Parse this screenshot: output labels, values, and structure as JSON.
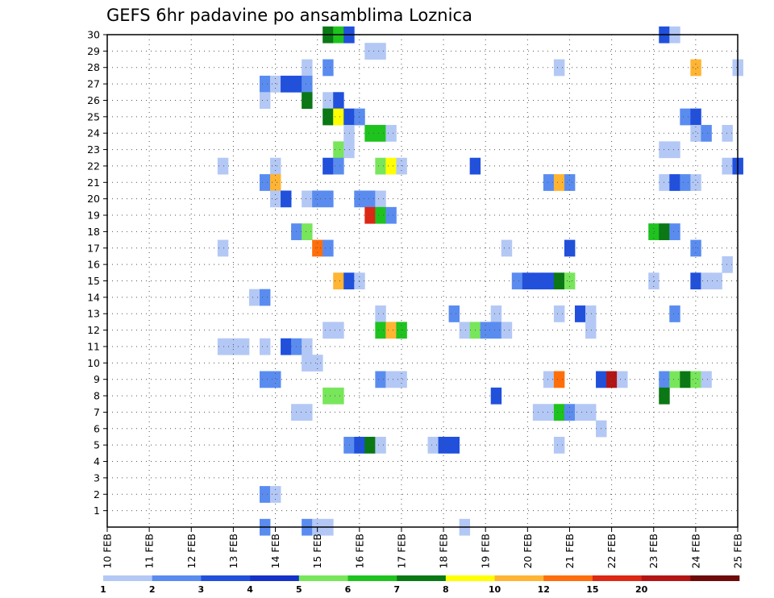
{
  "chart_data": {
    "type": "heatmap",
    "title": "GEFS 6hr padavine po ansamblima Loznica",
    "x_tick_labels": [
      "10 FEB",
      "11 FEB",
      "12 FEB",
      "13 FEB",
      "14 FEB",
      "15 FEB",
      "16 FEB",
      "17 FEB",
      "18 FEB",
      "19 FEB",
      "20 FEB",
      "21 FEB",
      "22 FEB",
      "23 FEB",
      "24 FEB",
      "25 FEB"
    ],
    "y_tick_labels": [
      "1",
      "2",
      "3",
      "4",
      "5",
      "6",
      "7",
      "8",
      "9",
      "10",
      "11",
      "12",
      "13",
      "14",
      "15",
      "16",
      "17",
      "18",
      "19",
      "20",
      "21",
      "22",
      "23",
      "24",
      "25",
      "26",
      "27",
      "28",
      "29",
      "30"
    ],
    "x_range_days": [
      10,
      25
    ],
    "y_range": [
      0,
      30
    ],
    "grid": true,
    "legend_position": "bottom",
    "legend_levels": [
      "1",
      "2",
      "3",
      "4",
      "5",
      "6",
      "7",
      "8",
      "10",
      "12",
      "15",
      "20"
    ],
    "legend_colors": [
      "#b4c8f5",
      "#5a8cf0",
      "#2050dc",
      "#1432c8",
      "#78e65a",
      "#1ec31e",
      "#0a7814",
      "#ffff00",
      "#ffb432",
      "#ff6e0a",
      "#dc2814",
      "#b41414",
      "#6e0a0a"
    ],
    "cell_colors": {
      "lb": "#b4c8f5",
      "mb": "#5a8cf0",
      "db": "#2050dc",
      "lg": "#78e65a",
      "mg": "#1ec31e",
      "dg": "#0a7814",
      "ye": "#ffff00",
      "yo": "#ffb432",
      "or": "#ff6e0a",
      "rd": "#dc2814",
      "dr": "#b41414"
    },
    "cells": [
      [
        15.25,
        30,
        "dg"
      ],
      [
        15.5,
        30,
        "mg"
      ],
      [
        15.75,
        30,
        "db"
      ],
      [
        23.25,
        30,
        "db"
      ],
      [
        23.5,
        30,
        "lb"
      ],
      [
        16.25,
        29,
        "lb"
      ],
      [
        16.5,
        29,
        "lb"
      ],
      [
        14.75,
        28,
        "lb"
      ],
      [
        15.25,
        28,
        "mb"
      ],
      [
        20.75,
        28,
        "lb"
      ],
      [
        24.0,
        28,
        "yo"
      ],
      [
        25.0,
        28,
        "lb"
      ],
      [
        13.75,
        27,
        "mb"
      ],
      [
        14.0,
        27,
        "lb"
      ],
      [
        14.25,
        27,
        "db"
      ],
      [
        14.5,
        27,
        "db"
      ],
      [
        14.75,
        27,
        "mb"
      ],
      [
        13.75,
        26,
        "lb"
      ],
      [
        14.75,
        26,
        "dg"
      ],
      [
        15.25,
        26,
        "lb"
      ],
      [
        15.5,
        26,
        "db"
      ],
      [
        15.25,
        25,
        "dg"
      ],
      [
        15.5,
        25,
        "ye"
      ],
      [
        15.75,
        25,
        "db"
      ],
      [
        16.0,
        25,
        "mb"
      ],
      [
        23.75,
        25,
        "mb"
      ],
      [
        24.0,
        25,
        "db"
      ],
      [
        15.75,
        24,
        "lb"
      ],
      [
        16.25,
        24,
        "mg"
      ],
      [
        16.5,
        24,
        "mg"
      ],
      [
        16.75,
        24,
        "lb"
      ],
      [
        24.0,
        24,
        "lb"
      ],
      [
        24.25,
        24,
        "mb"
      ],
      [
        24.75,
        24,
        "lb"
      ],
      [
        23.25,
        23,
        "lb"
      ],
      [
        23.5,
        23,
        "lb"
      ],
      [
        15.5,
        23,
        "lg"
      ],
      [
        15.75,
        23,
        "lb"
      ],
      [
        12.75,
        22,
        "lb"
      ],
      [
        14.0,
        22,
        "lb"
      ],
      [
        15.25,
        22,
        "db"
      ],
      [
        15.5,
        22,
        "mb"
      ],
      [
        16.5,
        22,
        "lg"
      ],
      [
        16.75,
        22,
        "ye"
      ],
      [
        17.0,
        22,
        "lb"
      ],
      [
        18.75,
        22,
        "db"
      ],
      [
        24.75,
        22,
        "lb"
      ],
      [
        25.0,
        22,
        "db"
      ],
      [
        13.75,
        21,
        "mb"
      ],
      [
        14.0,
        21,
        "yo"
      ],
      [
        20.5,
        21,
        "mb"
      ],
      [
        20.75,
        21,
        "yo"
      ],
      [
        21.0,
        21,
        "mb"
      ],
      [
        23.25,
        21,
        "lb"
      ],
      [
        23.5,
        21,
        "db"
      ],
      [
        23.75,
        21,
        "mb"
      ],
      [
        24.0,
        21,
        "lb"
      ],
      [
        14.0,
        20,
        "lb"
      ],
      [
        14.25,
        20,
        "db"
      ],
      [
        14.75,
        20,
        "lb"
      ],
      [
        15.0,
        20,
        "mb"
      ],
      [
        15.25,
        20,
        "mb"
      ],
      [
        16.0,
        20,
        "mb"
      ],
      [
        16.25,
        20,
        "mb"
      ],
      [
        16.5,
        20,
        "lb"
      ],
      [
        16.25,
        19,
        "rd"
      ],
      [
        16.5,
        19,
        "mg"
      ],
      [
        16.75,
        19,
        "mb"
      ],
      [
        23.0,
        18,
        "mg"
      ],
      [
        23.25,
        18,
        "dg"
      ],
      [
        23.5,
        18,
        "mb"
      ],
      [
        14.5,
        18,
        "mb"
      ],
      [
        14.75,
        18,
        "lg"
      ],
      [
        12.75,
        17,
        "lb"
      ],
      [
        15.0,
        17,
        "or"
      ],
      [
        15.25,
        17,
        "mb"
      ],
      [
        19.5,
        17,
        "lb"
      ],
      [
        21.0,
        17,
        "db"
      ],
      [
        24.0,
        17,
        "mb"
      ],
      [
        24.75,
        16,
        "lb"
      ],
      [
        15.5,
        15,
        "yo"
      ],
      [
        15.75,
        15,
        "db"
      ],
      [
        16.0,
        15,
        "lb"
      ],
      [
        19.75,
        15,
        "mb"
      ],
      [
        20.0,
        15,
        "db"
      ],
      [
        20.25,
        15,
        "db"
      ],
      [
        20.5,
        15,
        "db"
      ],
      [
        20.75,
        15,
        "dg"
      ],
      [
        21.0,
        15,
        "lg"
      ],
      [
        23.0,
        15,
        "lb"
      ],
      [
        24.0,
        15,
        "db"
      ],
      [
        24.25,
        15,
        "lb"
      ],
      [
        24.5,
        15,
        "lb"
      ],
      [
        13.5,
        14,
        "lb"
      ],
      [
        13.75,
        14,
        "mb"
      ],
      [
        16.5,
        13,
        "lb"
      ],
      [
        18.25,
        13,
        "mb"
      ],
      [
        19.25,
        13,
        "lb"
      ],
      [
        20.75,
        13,
        "lb"
      ],
      [
        21.25,
        13,
        "db"
      ],
      [
        21.5,
        13,
        "lb"
      ],
      [
        23.5,
        13,
        "mb"
      ],
      [
        15.25,
        12,
        "lb"
      ],
      [
        15.5,
        12,
        "lb"
      ],
      [
        16.5,
        12,
        "mg"
      ],
      [
        16.75,
        12,
        "yo"
      ],
      [
        17.0,
        12,
        "mg"
      ],
      [
        18.5,
        12,
        "lb"
      ],
      [
        18.75,
        12,
        "lg"
      ],
      [
        19.0,
        12,
        "mb"
      ],
      [
        19.25,
        12,
        "mb"
      ],
      [
        19.5,
        12,
        "lb"
      ],
      [
        21.5,
        12,
        "lb"
      ],
      [
        12.75,
        11,
        "lb"
      ],
      [
        13.0,
        11,
        "lb"
      ],
      [
        13.25,
        11,
        "lb"
      ],
      [
        13.75,
        11,
        "lb"
      ],
      [
        14.25,
        11,
        "db"
      ],
      [
        14.5,
        11,
        "mb"
      ],
      [
        14.75,
        11,
        "lb"
      ],
      [
        14.75,
        10,
        "lb"
      ],
      [
        15.0,
        10,
        "lb"
      ],
      [
        13.75,
        9,
        "mb"
      ],
      [
        14.0,
        9,
        "mb"
      ],
      [
        16.5,
        9,
        "mb"
      ],
      [
        16.75,
        9,
        "lb"
      ],
      [
        17.0,
        9,
        "lb"
      ],
      [
        20.5,
        9,
        "lb"
      ],
      [
        20.75,
        9,
        "or"
      ],
      [
        21.75,
        9,
        "db"
      ],
      [
        22.0,
        9,
        "dr"
      ],
      [
        22.25,
        9,
        "lb"
      ],
      [
        23.25,
        9,
        "mb"
      ],
      [
        23.5,
        9,
        "lg"
      ],
      [
        23.75,
        9,
        "dg"
      ],
      [
        24.0,
        9,
        "lg"
      ],
      [
        24.25,
        9,
        "lb"
      ],
      [
        15.25,
        8,
        "lg"
      ],
      [
        15.5,
        8,
        "lg"
      ],
      [
        19.25,
        8,
        "db"
      ],
      [
        23.25,
        8,
        "dg"
      ],
      [
        14.5,
        7,
        "lb"
      ],
      [
        14.75,
        7,
        "lb"
      ],
      [
        20.25,
        7,
        "lb"
      ],
      [
        20.5,
        7,
        "lb"
      ],
      [
        20.75,
        7,
        "mg"
      ],
      [
        21.0,
        7,
        "mb"
      ],
      [
        21.25,
        7,
        "lb"
      ],
      [
        21.5,
        7,
        "lb"
      ],
      [
        21.75,
        6,
        "lb"
      ],
      [
        15.75,
        5,
        "mb"
      ],
      [
        16.0,
        5,
        "db"
      ],
      [
        16.25,
        5,
        "dg"
      ],
      [
        16.5,
        5,
        "lb"
      ],
      [
        17.75,
        5,
        "lb"
      ],
      [
        18.0,
        5,
        "db"
      ],
      [
        18.25,
        5,
        "db"
      ],
      [
        20.75,
        5,
        "lb"
      ],
      [
        13.75,
        2,
        "mb"
      ],
      [
        14.0,
        2,
        "lb"
      ],
      [
        13.75,
        0,
        "mb"
      ],
      [
        14.75,
        0,
        "mb"
      ],
      [
        15.0,
        0,
        "lb"
      ],
      [
        15.25,
        0,
        "lb"
      ],
      [
        18.5,
        0,
        "lb"
      ]
    ]
  }
}
